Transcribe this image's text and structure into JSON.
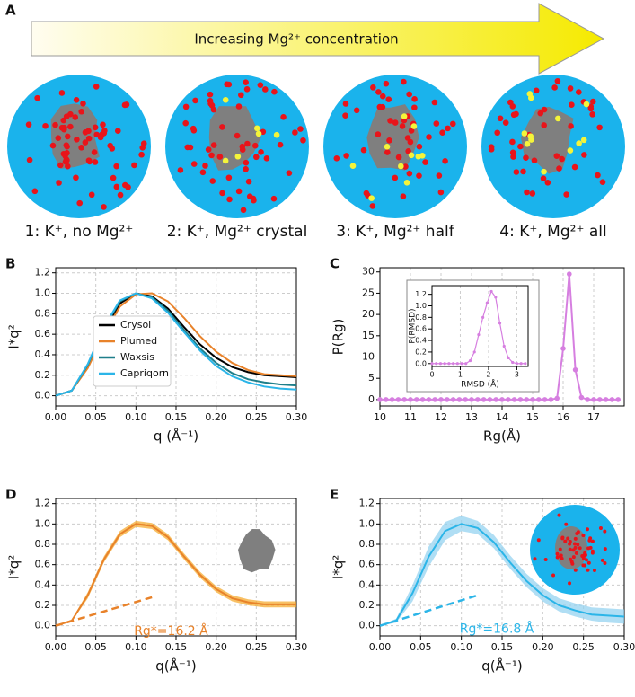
{
  "header": {
    "label": "A",
    "arrow_text": "Increasing Mg²⁺ concentration",
    "systems": [
      "1: K⁺, no Mg²⁺",
      "2: K⁺, Mg²⁺ crystal",
      "3: K⁺, Mg²⁺ half",
      "4: K⁺, Mg²⁺ all"
    ]
  },
  "chart_data": [
    {
      "type": "line",
      "label": "B",
      "xlabel": "q (Å⁻¹)",
      "ylabel": "I*q²",
      "grid": true,
      "legend": "lower left",
      "xlim": [
        0,
        0.3
      ],
      "xticks": [
        {
          "value": 0,
          "label": "0.00"
        },
        0.05,
        {
          "value": 0.1,
          "label": "0.10"
        },
        0.15,
        {
          "value": 0.2,
          "label": "0.20"
        },
        0.25,
        {
          "value": 0.3,
          "label": "0.30"
        }
      ],
      "ylim": [
        -0.1,
        1.25
      ],
      "yticks": [
        {
          "value": 0,
          "label": "0.0"
        },
        0.2,
        0.4,
        0.6,
        0.8,
        {
          "value": 1,
          "label": "1.0"
        },
        1.2
      ],
      "x": [
        0,
        0.02,
        0.04,
        0.06,
        0.08,
        0.1,
        0.12,
        0.14,
        0.16,
        0.18,
        0.2,
        0.22,
        0.24,
        0.26,
        0.28,
        0.3
      ],
      "series": [
        {
          "name": "Crysol",
          "color": "#000000",
          "values": [
            0,
            0.05,
            0.28,
            0.63,
            0.9,
            1.0,
            0.97,
            0.85,
            0.67,
            0.5,
            0.37,
            0.28,
            0.23,
            0.2,
            0.19,
            0.18
          ]
        },
        {
          "name": "Plumed",
          "color": "#e8822a",
          "values": [
            0,
            0.05,
            0.27,
            0.6,
            0.87,
            0.99,
            1.0,
            0.92,
            0.76,
            0.58,
            0.43,
            0.32,
            0.25,
            0.21,
            0.2,
            0.19
          ]
        },
        {
          "name": "Waxsis",
          "color": "#1f7f8a",
          "values": [
            0,
            0.05,
            0.3,
            0.66,
            0.92,
            1.0,
            0.96,
            0.83,
            0.64,
            0.46,
            0.32,
            0.22,
            0.16,
            0.13,
            0.11,
            0.1
          ]
        },
        {
          "name": "Capriqorn",
          "color": "#2bb5e8",
          "values": [
            0,
            0.05,
            0.31,
            0.67,
            0.93,
            1.0,
            0.95,
            0.81,
            0.62,
            0.44,
            0.29,
            0.19,
            0.13,
            0.09,
            0.07,
            0.06
          ]
        }
      ]
    },
    {
      "type": "line",
      "label": "C",
      "xlabel": "Rg(Å)",
      "ylabel": "P(Rg)",
      "grid": true,
      "marker": "o",
      "xlim": [
        10,
        18
      ],
      "xticks": [
        10,
        11,
        12,
        13,
        14,
        15,
        16,
        17
      ],
      "ylim": [
        -1.5,
        31
      ],
      "yticks": [
        0,
        5,
        10,
        15,
        20,
        25,
        30
      ],
      "x": [
        10,
        10.2,
        10.4,
        10.6,
        10.8,
        11,
        11.2,
        11.4,
        11.6,
        11.8,
        12,
        12.2,
        12.4,
        12.6,
        12.8,
        13,
        13.2,
        13.4,
        13.6,
        13.8,
        14,
        14.2,
        14.4,
        14.6,
        14.8,
        15,
        15.2,
        15.4,
        15.6,
        15.8,
        16,
        16.2,
        16.4,
        16.6,
        16.8,
        17,
        17.2,
        17.4,
        17.6,
        17.8
      ],
      "series": [
        {
          "color": "#d67fe0",
          "values": [
            0,
            0,
            0,
            0,
            0,
            0,
            0,
            0,
            0,
            0,
            0,
            0,
            0,
            0,
            0,
            0,
            0,
            0,
            0,
            0,
            0,
            0,
            0,
            0,
            0,
            0,
            0,
            0,
            0,
            0.3,
            12,
            29.5,
            7,
            0.5,
            0,
            0,
            0,
            0,
            0,
            0
          ]
        }
      ],
      "inset": {
        "type": "line",
        "xlabel": "RMSD (Å)",
        "ylabel": "P(RMSD)",
        "grid": true,
        "marker": "o",
        "xlim": [
          0,
          3.4
        ],
        "xticks": [
          0,
          1,
          2,
          3
        ],
        "ylim": [
          -0.05,
          1.35
        ],
        "yticks": [
          {
            "value": 0,
            "label": "0.0"
          },
          0.2,
          0.4,
          0.6,
          0.8,
          {
            "value": 1,
            "label": "1.0"
          },
          1.2
        ],
        "x": [
          0,
          0.15,
          0.3,
          0.45,
          0.6,
          0.75,
          0.9,
          1.05,
          1.2,
          1.35,
          1.5,
          1.65,
          1.8,
          1.95,
          2.1,
          2.25,
          2.4,
          2.55,
          2.7,
          2.85,
          3,
          3.15,
          3.3
        ],
        "series": [
          {
            "color": "#d67fe0",
            "values": [
              0,
              0,
              0,
              0,
              0,
              0,
              0,
              0,
              0,
              0.05,
              0.2,
              0.5,
              0.8,
              1.05,
              1.25,
              1.15,
              0.7,
              0.3,
              0.1,
              0.02,
              0,
              0,
              0
            ]
          }
        ]
      }
    },
    {
      "type": "band",
      "label": "D",
      "xlabel": "q(Å⁻¹)",
      "ylabel": "I*q²",
      "grid": true,
      "annotation": "Rg*=16.2 Å",
      "xlim": [
        0,
        0.3
      ],
      "xticks": [
        {
          "value": 0,
          "label": "0.00"
        },
        0.05,
        {
          "value": 0.1,
          "label": "0.10"
        },
        0.15,
        {
          "value": 0.2,
          "label": "0.20"
        },
        0.25,
        {
          "value": 0.3,
          "label": "0.30"
        }
      ],
      "ylim": [
        -0.1,
        1.25
      ],
      "yticks": [
        {
          "value": 0,
          "label": "0.0"
        },
        0.2,
        0.4,
        0.6,
        0.8,
        {
          "value": 1,
          "label": "1.0"
        },
        1.2
      ],
      "x": [
        0,
        0.02,
        0.04,
        0.06,
        0.08,
        0.1,
        0.12,
        0.14,
        0.16,
        0.18,
        0.2,
        0.22,
        0.24,
        0.26,
        0.28,
        0.3
      ],
      "guinier": {
        "x": [
          0,
          0.12
        ],
        "y": [
          0,
          0.28
        ]
      },
      "series": [
        {
          "color": "#e8822a",
          "band_color": "#f5a623",
          "values": [
            0,
            0.05,
            0.3,
            0.65,
            0.9,
            1.0,
            0.98,
            0.87,
            0.68,
            0.5,
            0.36,
            0.27,
            0.23,
            0.21,
            0.21,
            0.21
          ],
          "lower": [
            0,
            0.04,
            0.27,
            0.62,
            0.87,
            0.97,
            0.95,
            0.84,
            0.65,
            0.47,
            0.33,
            0.24,
            0.2,
            0.18,
            0.18,
            0.18
          ],
          "upper": [
            0,
            0.06,
            0.33,
            0.68,
            0.93,
            1.03,
            1.01,
            0.9,
            0.71,
            0.53,
            0.39,
            0.3,
            0.26,
            0.24,
            0.24,
            0.24
          ]
        }
      ]
    },
    {
      "type": "band",
      "label": "E",
      "xlabel": "q(Å⁻¹)",
      "ylabel": "I*q²",
      "grid": true,
      "annotation": "Rg*=16.8 Å",
      "xlim": [
        0,
        0.3
      ],
      "xticks": [
        {
          "value": 0,
          "label": "0.00"
        },
        0.05,
        {
          "value": 0.1,
          "label": "0.10"
        },
        0.15,
        {
          "value": 0.2,
          "label": "0.20"
        },
        0.25,
        {
          "value": 0.3,
          "label": "0.30"
        }
      ],
      "ylim": [
        -0.1,
        1.25
      ],
      "yticks": [
        {
          "value": 0,
          "label": "0.0"
        },
        0.2,
        0.4,
        0.6,
        0.8,
        {
          "value": 1,
          "label": "1.0"
        },
        1.2
      ],
      "x": [
        0,
        0.02,
        0.04,
        0.06,
        0.08,
        0.1,
        0.12,
        0.14,
        0.16,
        0.18,
        0.2,
        0.22,
        0.24,
        0.26,
        0.28,
        0.3
      ],
      "guinier": {
        "x": [
          0,
          0.12
        ],
        "y": [
          0,
          0.3
        ]
      },
      "series": [
        {
          "color": "#2bb5e8",
          "band_color": "#8fd0f0",
          "values": [
            0,
            0.05,
            0.32,
            0.68,
            0.93,
            1.0,
            0.96,
            0.82,
            0.62,
            0.44,
            0.3,
            0.2,
            0.15,
            0.11,
            0.1,
            0.09
          ],
          "lower": [
            0,
            0.03,
            0.24,
            0.58,
            0.84,
            0.93,
            0.9,
            0.76,
            0.56,
            0.38,
            0.24,
            0.14,
            0.09,
            0.05,
            0.03,
            0.02
          ],
          "upper": [
            0,
            0.07,
            0.4,
            0.78,
            1.02,
            1.08,
            1.03,
            0.89,
            0.69,
            0.51,
            0.37,
            0.27,
            0.22,
            0.18,
            0.17,
            0.16
          ]
        }
      ]
    }
  ]
}
